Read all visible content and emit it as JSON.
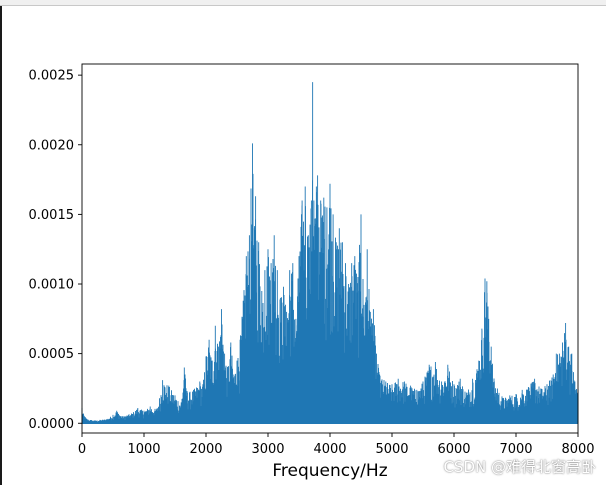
{
  "chart_data": {
    "type": "line",
    "title": "",
    "xlabel": "Frequency/Hz",
    "ylabel": "",
    "xlim": [
      0,
      8000
    ],
    "ylim": [
      -7e-05,
      0.00258
    ],
    "xticks": [
      0,
      1000,
      2000,
      3000,
      4000,
      5000,
      6000,
      7000,
      8000
    ],
    "yticks": [
      0.0,
      0.0005,
      0.001,
      0.0015,
      0.002,
      0.0025
    ],
    "ytick_labels": [
      "0.0000",
      "0.0005",
      "0.0010",
      "0.0015",
      "0.0020",
      "0.0025"
    ],
    "grid": false,
    "legend": "none",
    "series": [
      {
        "color": "#1f77b4",
        "envelope_x": [
          0,
          20,
          80,
          200,
          400,
          500,
          560,
          650,
          800,
          900,
          1000,
          1100,
          1200,
          1250,
          1300,
          1400,
          1500,
          1600,
          1650,
          1700,
          1800,
          1900,
          1950,
          2000,
          2050,
          2100,
          2150,
          2200,
          2250,
          2300,
          2350,
          2400,
          2450,
          2500,
          2550,
          2600,
          2650,
          2700,
          2750,
          2780,
          2800,
          2850,
          2900,
          2950,
          3000,
          3050,
          3100,
          3150,
          3200,
          3250,
          3300,
          3350,
          3400,
          3450,
          3500,
          3550,
          3600,
          3650,
          3700,
          3720,
          3740,
          3780,
          3800,
          3850,
          3900,
          3950,
          4000,
          4050,
          4100,
          4150,
          4200,
          4250,
          4300,
          4350,
          4400,
          4450,
          4500,
          4550,
          4600,
          4650,
          4700,
          4750,
          4800,
          4900,
          5000,
          5100,
          5200,
          5300,
          5400,
          5500,
          5600,
          5700,
          5800,
          5900,
          6000,
          6100,
          6200,
          6300,
          6400,
          6450,
          6500,
          6530,
          6560,
          6600,
          6650,
          6700,
          6800,
          6900,
          7000,
          7100,
          7200,
          7300,
          7400,
          7500,
          7600,
          7650,
          7700,
          7750,
          7800,
          7850,
          7900,
          7950,
          8000
        ],
        "envelope_max": [
          0.00011,
          7e-05,
          3e-05,
          2e-05,
          3e-05,
          6e-05,
          9e-05,
          5e-05,
          7e-05,
          0.00011,
          9e-05,
          0.00012,
          0.0001,
          0.00018,
          0.00031,
          0.00027,
          0.0002,
          0.00015,
          0.0004,
          0.00022,
          0.00024,
          0.0003,
          0.00028,
          0.00048,
          0.0006,
          0.00045,
          0.0007,
          0.00055,
          0.00082,
          0.0005,
          0.0004,
          0.00058,
          0.00035,
          0.00045,
          0.0006,
          0.00088,
          0.0012,
          0.00135,
          0.00201,
          0.0014,
          0.00163,
          0.0013,
          0.00095,
          0.0011,
          0.00125,
          0.00115,
          0.00135,
          0.0011,
          0.0009,
          0.00098,
          0.0008,
          0.0011,
          0.00115,
          0.00075,
          0.0012,
          0.0016,
          0.0017,
          0.00135,
          0.0016,
          0.00245,
          0.0016,
          0.0017,
          0.00178,
          0.0016,
          0.00162,
          0.00155,
          0.00172,
          0.0015,
          0.0013,
          0.0014,
          0.0013,
          0.00115,
          0.001,
          0.00115,
          0.0012,
          0.00105,
          0.0015,
          0.00085,
          0.00125,
          0.0008,
          0.00082,
          0.0005,
          0.00035,
          0.0003,
          0.00028,
          0.00032,
          0.0003,
          0.00027,
          0.00024,
          0.0003,
          0.00042,
          0.00044,
          0.0003,
          0.00042,
          0.00028,
          0.00032,
          0.00022,
          0.00032,
          0.00045,
          0.00068,
          0.00104,
          0.00102,
          0.00075,
          0.00055,
          0.0003,
          0.00025,
          0.00018,
          0.0002,
          0.00021,
          0.00024,
          0.00026,
          0.00032,
          0.00025,
          0.00028,
          0.00035,
          0.0005,
          0.0005,
          0.00058,
          0.00072,
          0.00055,
          0.0005,
          0.0003,
          0.00025
        ],
        "noise_floor": 0.0
      }
    ]
  },
  "watermark": "CSDN @难得北窗高卧"
}
